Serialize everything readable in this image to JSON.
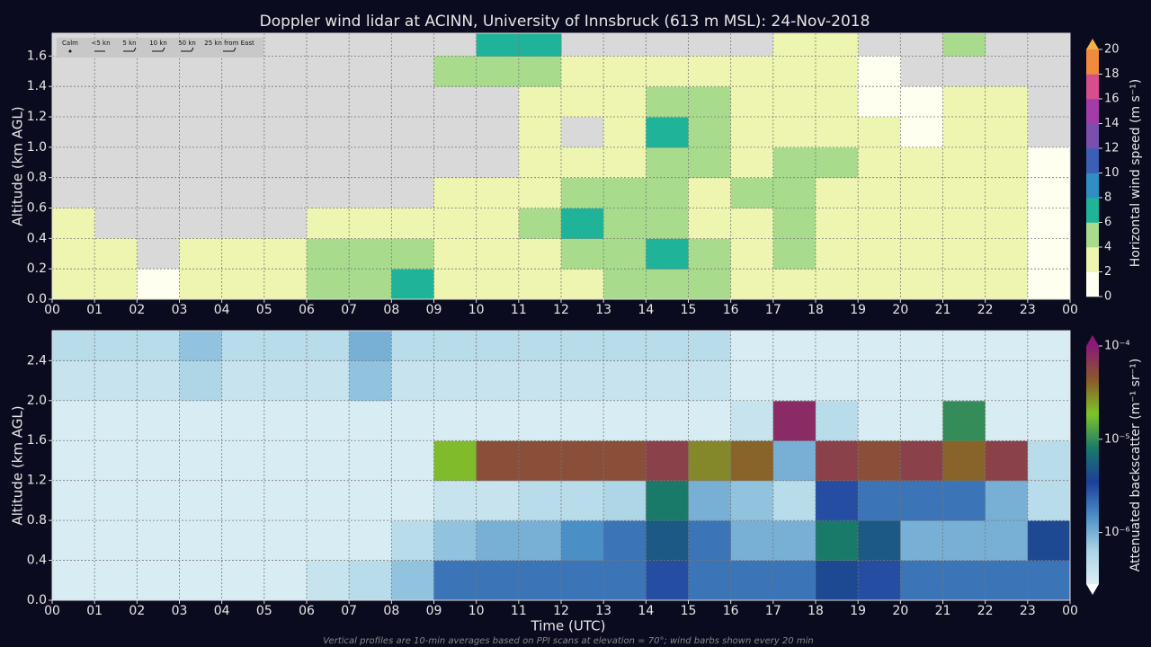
{
  "title": "Doppler wind lidar at ACINN, University of Innsbruck (613 m MSL): 24-Nov-2018",
  "footnote": "Vertical profiles are 10-min averages based on PPI scans at elevation = 70°; wind barbs shown every 20 min",
  "chart_data": [
    {
      "type": "heatmap",
      "ylabel": "Altitude (km AGL)",
      "barb_legend": [
        "Calm",
        "<5 kn",
        "5 kn",
        "10 kn",
        "50 kn",
        "25 kn from East"
      ],
      "xlim": [
        0,
        24
      ],
      "xticks": [
        {
          "value": 0,
          "label": "00"
        },
        {
          "value": 1,
          "label": "01"
        },
        {
          "value": 2,
          "label": "02"
        },
        {
          "value": 3,
          "label": "03"
        },
        {
          "value": 4,
          "label": "04"
        },
        {
          "value": 5,
          "label": "05"
        },
        {
          "value": 6,
          "label": "06"
        },
        {
          "value": 7,
          "label": "07"
        },
        {
          "value": 8,
          "label": "08"
        },
        {
          "value": 9,
          "label": "09"
        },
        {
          "value": 10,
          "label": "10"
        },
        {
          "value": 11,
          "label": "11"
        },
        {
          "value": 12,
          "label": "12"
        },
        {
          "value": 13,
          "label": "13"
        },
        {
          "value": 14,
          "label": "14"
        },
        {
          "value": 15,
          "label": "15"
        },
        {
          "value": 16,
          "label": "16"
        },
        {
          "value": 17,
          "label": "17"
        },
        {
          "value": 18,
          "label": "18"
        },
        {
          "value": 19,
          "label": "19"
        },
        {
          "value": 20,
          "label": "20"
        },
        {
          "value": 21,
          "label": "21"
        },
        {
          "value": 22,
          "label": "22"
        },
        {
          "value": 23,
          "label": "23"
        },
        {
          "value": 24,
          "label": "00"
        }
      ],
      "ylim": [
        0,
        1.75
      ],
      "yticks": [
        {
          "value": 0,
          "label": "0.0"
        },
        0.2,
        0.4,
        0.6,
        0.8,
        {
          "value": 1,
          "label": "1.0"
        },
        1.2,
        1.4,
        1.6
      ],
      "grid": true,
      "missing_color": "#d9d9d9",
      "xbins": [
        0,
        1,
        2,
        3,
        4,
        5,
        6,
        7,
        8,
        9,
        10,
        11,
        12,
        13,
        14,
        15,
        16,
        17,
        18,
        19,
        20,
        21,
        22,
        23,
        24
      ],
      "ybins": [
        0,
        0.2,
        0.4,
        0.6,
        0.8,
        1.0,
        1.2,
        1.4,
        1.6,
        1.75
      ],
      "values": [
        [
          2,
          2,
          1,
          2,
          2,
          3,
          4,
          5,
          6,
          2,
          3,
          2,
          3,
          4,
          5,
          4,
          2,
          3,
          3,
          2,
          2,
          2,
          2,
          1
        ],
        [
          2,
          2,
          null,
          2,
          3,
          3,
          4,
          4,
          5,
          3,
          3,
          3,
          5,
          4,
          6,
          4,
          2,
          5,
          3,
          2,
          2,
          2,
          2,
          1
        ],
        [
          2,
          null,
          null,
          null,
          null,
          null,
          3,
          3,
          2,
          3,
          3,
          4,
          6,
          5,
          4,
          2,
          3,
          5,
          3,
          2,
          2,
          3,
          2,
          1
        ],
        [
          null,
          null,
          null,
          null,
          null,
          null,
          null,
          null,
          null,
          2,
          3,
          3,
          5,
          4,
          5,
          3,
          4,
          5,
          3,
          2,
          2,
          2,
          2,
          1
        ],
        [
          null,
          null,
          null,
          null,
          null,
          null,
          null,
          null,
          null,
          null,
          null,
          2,
          2,
          3,
          5,
          5,
          3,
          5,
          4,
          3,
          2,
          2,
          2,
          1
        ],
        [
          null,
          null,
          null,
          null,
          null,
          null,
          null,
          null,
          null,
          null,
          null,
          2,
          null,
          2,
          6,
          5,
          3,
          3,
          3,
          2,
          1,
          2,
          2,
          null
        ],
        [
          null,
          null,
          null,
          null,
          null,
          null,
          null,
          null,
          null,
          null,
          null,
          3,
          2,
          3,
          5,
          4,
          3,
          3,
          2,
          1,
          1,
          2,
          3,
          null
        ],
        [
          null,
          null,
          null,
          null,
          null,
          null,
          null,
          null,
          null,
          4,
          5,
          5,
          3,
          2,
          3,
          3,
          2,
          2,
          2,
          1,
          null,
          null,
          null,
          null
        ],
        [
          null,
          null,
          null,
          null,
          null,
          null,
          null,
          null,
          null,
          null,
          6,
          6,
          null,
          null,
          null,
          null,
          null,
          2,
          3,
          null,
          null,
          5,
          null,
          null
        ]
      ],
      "colorbar": {
        "label": "Horizontal wind speed (m s⁻¹)",
        "scale": "linear",
        "clim": [
          0,
          20
        ],
        "ticks": [
          0,
          2,
          4,
          6,
          8,
          10,
          12,
          14,
          16,
          18,
          20
        ],
        "colors": [
          "#fffff0",
          "#eef5b0",
          "#a8dc8c",
          "#1fb39a",
          "#2f8fc4",
          "#3b5fb5",
          "#7b4fb0",
          "#a33ca8",
          "#d64e8c",
          "#f08a3c"
        ]
      }
    },
    {
      "type": "heatmap",
      "ylabel": "Altitude (km AGL)",
      "xlabel": "Time (UTC)",
      "xlim": [
        0,
        24
      ],
      "xticks": [
        {
          "value": 0,
          "label": "00"
        },
        {
          "value": 1,
          "label": "01"
        },
        {
          "value": 2,
          "label": "02"
        },
        {
          "value": 3,
          "label": "03"
        },
        {
          "value": 4,
          "label": "04"
        },
        {
          "value": 5,
          "label": "05"
        },
        {
          "value": 6,
          "label": "06"
        },
        {
          "value": 7,
          "label": "07"
        },
        {
          "value": 8,
          "label": "08"
        },
        {
          "value": 9,
          "label": "09"
        },
        {
          "value": 10,
          "label": "10"
        },
        {
          "value": 11,
          "label": "11"
        },
        {
          "value": 12,
          "label": "12"
        },
        {
          "value": 13,
          "label": "13"
        },
        {
          "value": 14,
          "label": "14"
        },
        {
          "value": 15,
          "label": "15"
        },
        {
          "value": 16,
          "label": "16"
        },
        {
          "value": 17,
          "label": "17"
        },
        {
          "value": 18,
          "label": "18"
        },
        {
          "value": 19,
          "label": "19"
        },
        {
          "value": 20,
          "label": "20"
        },
        {
          "value": 21,
          "label": "21"
        },
        {
          "value": 22,
          "label": "22"
        },
        {
          "value": 23,
          "label": "23"
        },
        {
          "value": 24,
          "label": "00"
        }
      ],
      "ylim": [
        0,
        2.7
      ],
      "yticks": [
        {
          "value": 0,
          "label": "0.0"
        },
        0.4,
        0.8,
        1.2,
        1.6,
        {
          "value": 2,
          "label": "2.0"
        },
        2.4
      ],
      "grid": true,
      "missing_color": "#dceff4",
      "xbins": [
        0,
        1,
        2,
        3,
        4,
        5,
        6,
        7,
        8,
        9,
        10,
        11,
        12,
        13,
        14,
        15,
        16,
        17,
        18,
        19,
        20,
        21,
        22,
        23,
        24
      ],
      "ybins": [
        0,
        0.4,
        0.8,
        1.2,
        1.6,
        2.0,
        2.4,
        2.7
      ],
      "values": [
        [
          3e-07,
          3e-07,
          3e-07,
          3e-07,
          3e-07,
          3e-07,
          4e-07,
          5e-07,
          8e-07,
          2e-06,
          2e-06,
          2e-06,
          2e-06,
          2e-06,
          3e-06,
          2e-06,
          2e-06,
          2e-06,
          4e-06,
          3e-06,
          2e-06,
          2e-06,
          2e-06,
          2e-06
        ],
        [
          3e-07,
          3e-07,
          3e-07,
          3e-07,
          3e-07,
          3e-07,
          3e-07,
          3e-07,
          5e-07,
          8e-07,
          1e-06,
          1e-06,
          1.5e-06,
          2e-06,
          5e-06,
          2e-06,
          1e-06,
          1e-06,
          8e-06,
          5e-06,
          1e-06,
          1e-06,
          1e-06,
          4e-06
        ],
        [
          3e-07,
          3e-07,
          3e-07,
          3e-07,
          3e-07,
          3e-07,
          3e-07,
          3e-07,
          3e-07,
          4e-07,
          4e-07,
          5e-07,
          5e-07,
          6e-07,
          8e-06,
          1e-06,
          8e-07,
          5e-07,
          3e-06,
          2e-06,
          2e-06,
          2e-06,
          1e-06,
          5e-07
        ],
        [
          3e-07,
          3e-07,
          3e-07,
          3e-07,
          3e-07,
          3e-07,
          3e-07,
          3e-07,
          3e-07,
          2e-05,
          5e-05,
          5e-05,
          5e-05,
          5e-05,
          6e-05,
          3e-05,
          4e-05,
          1e-06,
          6e-05,
          5e-05,
          6e-05,
          4e-05,
          6e-05,
          5e-07
        ],
        [
          3e-07,
          3e-07,
          3e-07,
          3e-07,
          3e-07,
          3e-07,
          3e-07,
          3e-07,
          3e-07,
          3e-07,
          3e-07,
          3e-07,
          3e-07,
          3e-07,
          3e-07,
          3e-07,
          4e-07,
          8e-05,
          5e-07,
          3e-07,
          3e-07,
          1e-05,
          3e-07,
          3e-07
        ],
        [
          4e-07,
          4e-07,
          4e-07,
          6e-07,
          4e-07,
          4e-07,
          4e-07,
          8e-07,
          4e-07,
          4e-07,
          4e-07,
          4e-07,
          4e-07,
          4e-07,
          4e-07,
          4e-07,
          3e-07,
          3e-07,
          3e-07,
          3e-07,
          3e-07,
          3e-07,
          3e-07,
          3e-07
        ],
        [
          5e-07,
          5e-07,
          5e-07,
          8e-07,
          5e-07,
          5e-07,
          5e-07,
          1e-06,
          5e-07,
          5e-07,
          5e-07,
          5e-07,
          5e-07,
          5e-07,
          5e-07,
          5e-07,
          3e-07,
          3e-07,
          3e-07,
          3e-07,
          3e-07,
          3e-07,
          3e-07,
          3e-07
        ]
      ],
      "colorbar": {
        "label": "Attenuated backscatter (m⁻¹ sr⁻¹)",
        "scale": "log",
        "clim": [
          2.8e-07,
          0.0001
        ],
        "ticks": [
          {
            "value": 0.0001,
            "label": "10⁻⁴"
          },
          {
            "value": 1e-05,
            "label": "10⁻⁵"
          },
          {
            "value": 1e-06,
            "label": "10⁻⁶"
          }
        ],
        "colors": [
          "#dceff4",
          "#a9d3e6",
          "#4a8fc6",
          "#1d3f9a",
          "#1a7a6a",
          "#7ec42a",
          "#8a5a2a",
          "#8a1a7a"
        ]
      }
    }
  ]
}
